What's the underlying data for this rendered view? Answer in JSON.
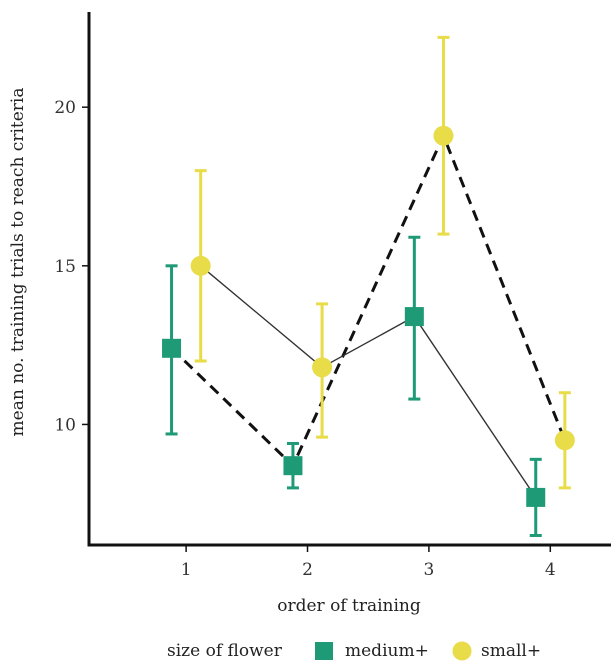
{
  "chart_data": {
    "type": "scatter",
    "xlabel": "order of training",
    "ylabel": "mean no. training trials to reach criteria",
    "categories": [
      "1",
      "2",
      "3",
      "4"
    ],
    "x": [
      1,
      2,
      3,
      4
    ],
    "xlim": [
      0.2,
      4.5
    ],
    "ylim": [
      6.2,
      23
    ],
    "yticks": [
      10,
      15,
      20
    ],
    "grid": false,
    "legend": {
      "title": "size of flower",
      "position": "bottom"
    },
    "series": [
      {
        "name": "medium+",
        "marker": "square",
        "color": "#1e9a76",
        "values": [
          12.4,
          8.7,
          13.4,
          7.7
        ],
        "error_low": [
          9.7,
          8.0,
          10.8,
          6.5
        ],
        "error_high": [
          15.0,
          9.4,
          15.9,
          8.9
        ]
      },
      {
        "name": "small+",
        "marker": "circle",
        "color": "#e8dc49",
        "values": [
          15.0,
          11.8,
          19.1,
          9.5
        ],
        "error_low": [
          12.0,
          9.6,
          16.0,
          8.0
        ],
        "error_high": [
          18.0,
          13.8,
          22.2,
          11.0
        ]
      }
    ],
    "connecting_lines": [
      {
        "style": "dashed",
        "color": "#111111",
        "path": [
          "medium+:1",
          "medium+:2",
          "small+:3",
          "small+:4"
        ]
      },
      {
        "style": "solid",
        "color": "#333333",
        "path": [
          "small+:1",
          "small+:2",
          "medium+:3",
          "medium+:4"
        ]
      }
    ]
  }
}
